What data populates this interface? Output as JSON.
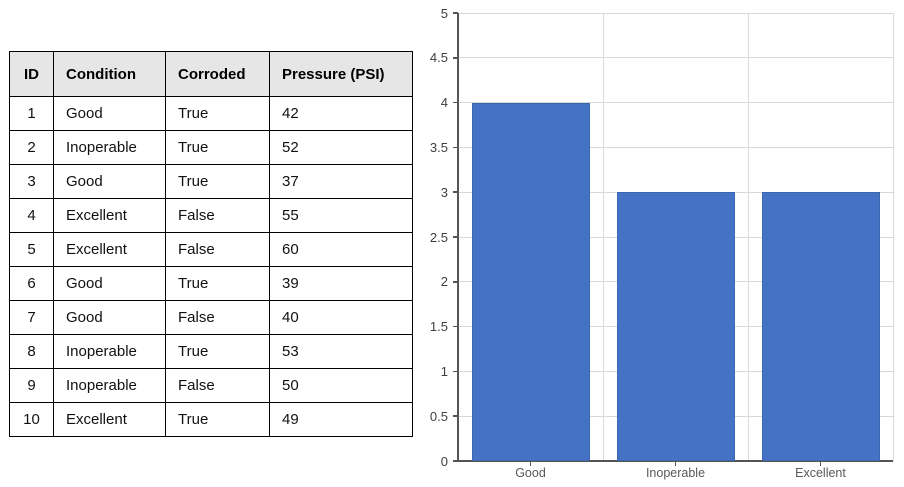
{
  "table": {
    "headers": [
      "ID",
      "Condition",
      "Corroded",
      "Pressure (PSI)"
    ],
    "rows": [
      [
        "1",
        "Good",
        "True",
        "42"
      ],
      [
        "2",
        "Inoperable",
        "True",
        "52"
      ],
      [
        "3",
        "Good",
        "True",
        "37"
      ],
      [
        "4",
        "Excellent",
        "False",
        "55"
      ],
      [
        "5",
        "Excellent",
        "False",
        "60"
      ],
      [
        "6",
        "Good",
        "True",
        "39"
      ],
      [
        "7",
        "Good",
        "False",
        "40"
      ],
      [
        "8",
        "Inoperable",
        "True",
        "53"
      ],
      [
        "9",
        "Inoperable",
        "False",
        "50"
      ],
      [
        "10",
        "Excellent",
        "True",
        "49"
      ]
    ],
    "header_bg": "#e7e6e6",
    "border_color": "#000000"
  },
  "chart_data": {
    "type": "bar",
    "categories": [
      "Good",
      "Inoperable",
      "Excellent"
    ],
    "values": [
      4,
      3,
      3
    ],
    "title": "",
    "xlabel": "",
    "ylabel": "",
    "ylim": [
      0,
      5
    ],
    "ytick_step": 0.5,
    "ytick_labels": [
      "0",
      "0.5",
      "1",
      "1.5",
      "2",
      "2.5",
      "3",
      "3.5",
      "4",
      "4.5",
      "5"
    ],
    "grid": true,
    "legend": "none",
    "bar_color": "#4472c4",
    "gridline_color": "#d9d9d9",
    "axis_color": "#555555"
  }
}
